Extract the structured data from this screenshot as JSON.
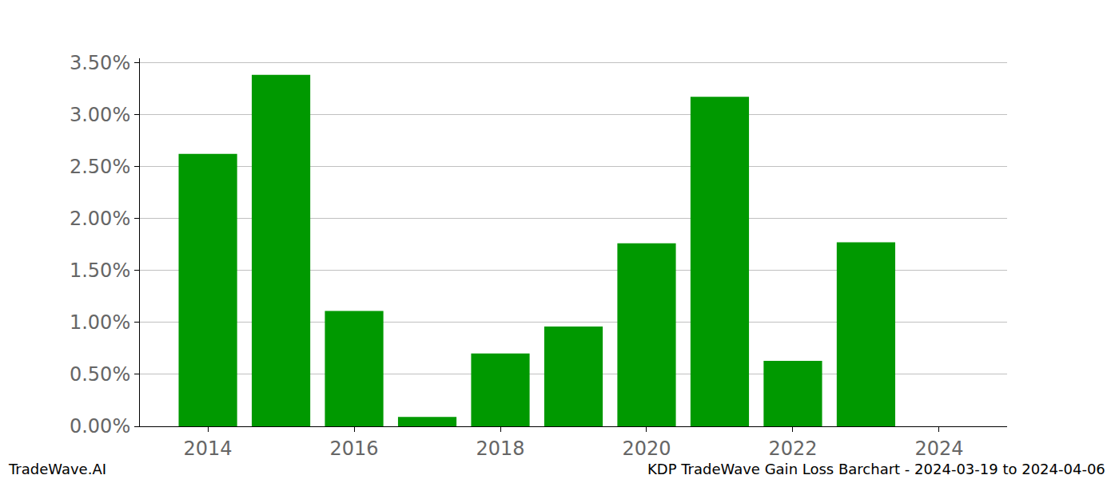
{
  "chart_data": {
    "type": "bar",
    "x": [
      2014,
      2015,
      2016,
      2017,
      2018,
      2019,
      2020,
      2021,
      2022,
      2023
    ],
    "values": [
      2.62,
      3.38,
      1.11,
      0.09,
      0.7,
      0.96,
      1.76,
      3.17,
      0.63,
      1.77
    ],
    "color": "#009900",
    "xlim": [
      2013.07,
      2024.93
    ],
    "xticks": [
      2014,
      2016,
      2018,
      2020,
      2022,
      2024
    ],
    "ylim": [
      0,
      3.54
    ],
    "yticks": [
      {
        "value": 0,
        "label": "0.00%"
      },
      {
        "value": 0.5,
        "label": "0.50%"
      },
      {
        "value": 1,
        "label": "1.00%"
      },
      {
        "value": 1.5,
        "label": "1.50%"
      },
      {
        "value": 2,
        "label": "2.00%"
      },
      {
        "value": 2.5,
        "label": "2.50%"
      },
      {
        "value": 3,
        "label": "3.00%"
      },
      {
        "value": 3.5,
        "label": "3.50%"
      }
    ],
    "grid": true,
    "annotations": [
      "TradeWave.AI",
      "KDP TradeWave Gain Loss Barchart - 2024-03-19 to 2024-04-06"
    ]
  }
}
